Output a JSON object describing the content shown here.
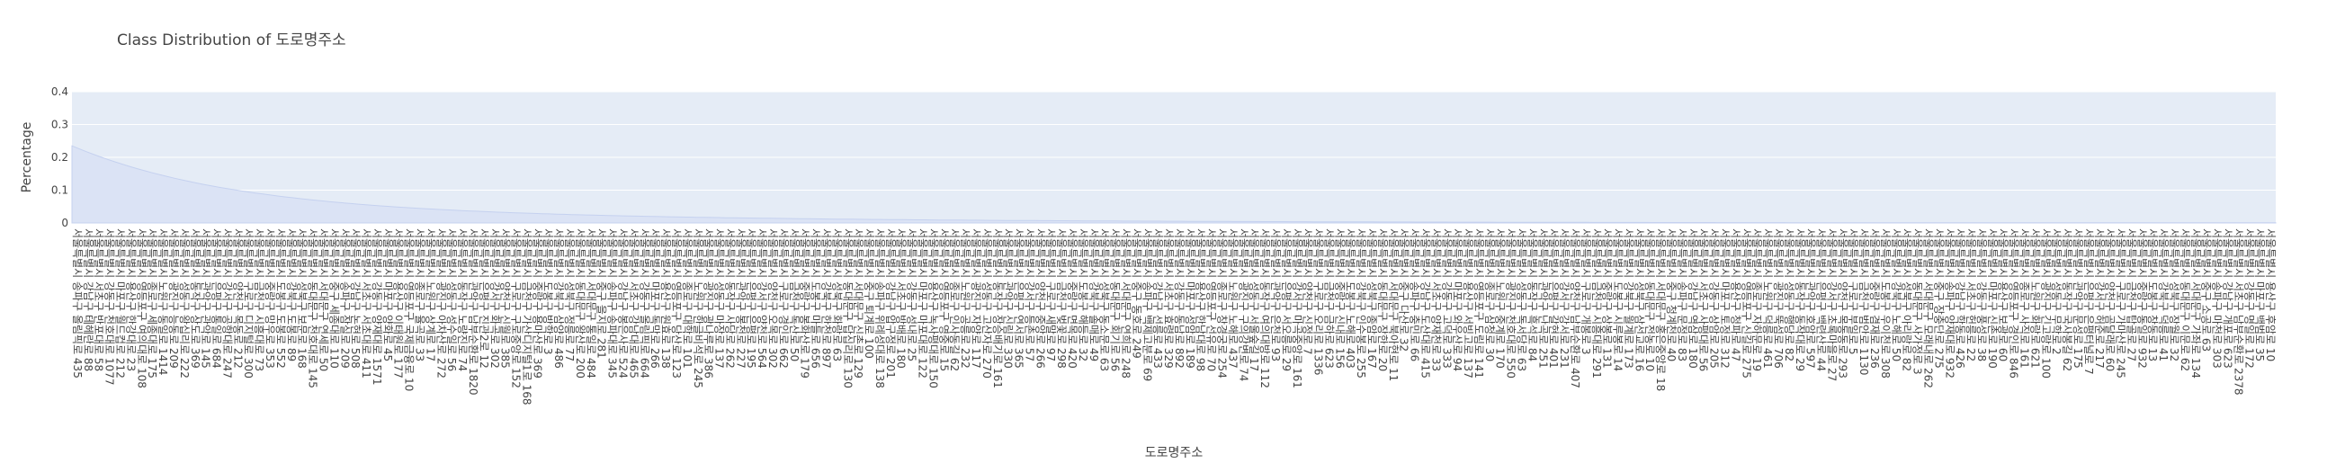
{
  "chart_data": {
    "type": "area",
    "title": "Class Distribution of 도로명주소",
    "xlabel": "도로명주소",
    "ylabel": "Percentage",
    "ylim": [
      0,
      0.4
    ],
    "y_ticks": [
      "0",
      "0.1",
      "0.2",
      "0.3",
      "0.4"
    ],
    "grid": true,
    "legend": "none",
    "colors": {
      "plot_bg": "#e5ecf6",
      "fill": "#dbe3f5",
      "line": "#c5d1ef",
      "grid": "#ffffff"
    },
    "categories": [
      "서울특별시 송파구 올림픽로 435",
      "서울특별시 강남구 테헤란로 88",
      "서울특별시 서초구 반포대로 58",
      "서울특별시 강동구 천호대로 1077",
      "서울특별시 마포구 월드컵로 212",
      "서울특별시 용산구 한강대로 23",
      "서울특별시 영등포구 여의대로 108",
      "서울특별시 종로구 세종대로 175",
      "서울특별시 노원구 동일로 1414",
      "서울특별시 광진구 능동로 209",
      "서울특별시 성동구 왕십리로 222",
      "서울특별시 동작구 상도로 369",
      "서울특별시 관악구 관악로 145",
      "서울특별시 은평구 통일로 684",
      "서울특별시 강서구 공항대로 247",
      "서울특별시 양천구 목동로 212",
      "서울특별시 구로구 디지털로 300",
      "서울특별시 금천구 시흥대로 73",
      "서울특별시 중랑구 망우로 353",
      "서울특별시 도봉구 도봉로 552",
      "서울특별시 강북구 도봉로 89",
      "서울특별시 성북구 보문로 168",
      "서울특별시 동대문구 천호대로 145",
      "서울특별시 서대문구 연세로 50",
      "서울특별시 중구 세종대로 110",
      "서울특별시 송파구 잠실로 209",
      "서울특별시 강남구 논현로 508",
      "서울특별시 서초구 서초대로 411",
      "서울특별시 강동구 양재대로 1571",
      "서울특별시 마포구 양화로 45",
      "서울특별시 용산구 이태원로 177",
      "서울특별시 영등포구 국제금융로 10",
      "서울특별시 종로구 율곡로 33",
      "서울특별시 노원구 상계로 17",
      "서울특별시 광진구 아차산로 272",
      "서울특별시 성동구 성수일로 56",
      "서울특별시 동작구 노량진로 74",
      "서울특별시 관악구 남부순환로 1820",
      "서울특별시 은평구 진관2로 12",
      "서울특별시 강서구 화곡로 302",
      "서울특별시 양천구 신월로 385",
      "서울특별시 구로구 구로중앙로 152",
      "서울특별시 금천구 가산디지털1로 168",
      "서울특별시 중랑구 용마산로 369",
      "서울특별시 도봉구 방학로 3",
      "서울특별시 강북구 삼양로 486",
      "서울특별시 성북구 정릉로 77",
      "서울특별시 동대문구 왕산로 200",
      "서울특별시 서대문구 통일로 484",
      "서울특별시 중구 을지로 281",
      "서울특별시 송파구 송파대로 345",
      "서울특별시 강남구 봉은사로 524",
      "서울특별시 서초구 강남대로 465",
      "서울특별시 강동구 올림픽로 664",
      "서울특별시 마포구 독막로 266",
      "서울특별시 용산구 원효로 138",
      "서울특별시 영등포구 당산로 123",
      "서울특별시 종로구 대학로 101",
      "서울특별시 노원구 한글비석로 245",
      "서울특별시 광진구 광나루로 386",
      "서울특별시 성동구 마장로 137",
      "서울특별시 동작구 사당로 262",
      "서울특별시 관악구 봉천로 227",
      "서울특별시 은평구 은평로 195",
      "서울특별시 강서구 양천로 564",
      "서울특별시 양천구 오목로 302",
      "서울특별시 구로구 경인로 662",
      "서울특별시 금천구 독산로 50",
      "서울특별시 중랑구 봉화산로 179",
      "서울특별시 도봉구 마들로 656",
      "서울특별시 강북구 한천로 897",
      "서울특별시 성북구 화랑로 63",
      "서울특별시 동대문구 답십리로 130",
      "서울특별시 서대문구 신촌로 129",
      "서울특별시 중구 퇴계로 100",
      "서울특별시 송파구 위례성대로 138",
      "서울특별시 강남구 압구정로 201",
      "서울특별시 서초구 방배로 180",
      "서울특별시 강동구 성내로 25",
      "서울특별시 마포구 마포대로 122",
      "서울특별시 용산구 녹사평대로 150",
      "서울특별시 영등포구 영중로 15",
      "서울특별시 종로구 인사동길 62",
      "서울특별시 노원구 공릉로 232",
      "서울특별시 광진구 자양로 117",
      "서울특별시 성동구 고산자로 270",
      "서울특별시 동작구 장승배기로 161",
      "서울특별시 관악구 신림로 330",
      "서울특별시 은평구 연서로 365",
      "서울특별시 강서구 등촌로 57",
      "서울특별시 양천구 중앙로 266",
      "서울특별시 구로구 새말로 97",
      "서울특별시 금천구 벚꽃로 298",
      "서울특별시 중랑구 면목로 420",
      "서울특별시 도봉구 해등로 32",
      "서울특별시 강북구 솔매로 49",
      "서울특별시 성북구 동소문로 63",
      "서울특별시 동대문구 회기로 56",
      "서울특별시 서대문구 연희로 248",
      "서울특별시 중구 동호로 249",
      "서울특별시 송파구 백제고분로 69",
      "서울특별시 강남구 선릉로 433",
      "서울특별시 서초구 효령로 329",
      "서울특별시 강동구 동남로 892",
      "서울특별시 마포구 성암로 189",
      "서울특별시 용산구 한남대로 98",
      "서울특별시 영등포구 선유로 70",
      "서울특별시 종로구 창경궁로 254",
      "서울특별시 노원구 노해로 437",
      "서울특별시 광진구 구의강변로 74",
      "서울특별시 성동구 서울숲길 17",
      "서울특별시 동작구 여의대방로 112",
      "서울특별시 관악구 은천로 93",
      "서울특별시 은평구 서오릉로 29",
      "서울특별시 강서구 마곡중앙로 161",
      "서울특별시 양천구 신정로 7",
      "서울특별시 구로구 오리로 1336",
      "서울특별시 금천구 금하로 623",
      "서울특별시 중랑구 신내로 156",
      "서울특별시 도봉구 노해로 403",
      "서울특별시 강북구 인수봉로 255",
      "서울특별시 성북구 종암로 167",
      "서울특별시 동대문구 장한로 20",
      "서울특별시 서대문구 북아현로 11",
      "서울특별시 중구 다산로 32",
      "서울특별시 송파구 충민로 66",
      "서울특별시 강남구 도산대로 415",
      "서울특별시 서초구 양재천로 33",
      "서울특별시 강동구 고덕로 333",
      "서울특별시 마포구 와우산로 94",
      "서울특별시 용산구 서빙고로 137",
      "서울특별시 영등포구 도림로 141",
      "서울특별시 종로구 삼청로 30",
      "서울특별시 노원구 중계로 170",
      "서울특별시 광진구 천호대로 550",
      "서울특별시 성동구 독서당로 63",
      "서울특별시 동작구 흑석로 84",
      "서울특별시 관악구 난곡로 251",
      "서울특별시 은평구 갈현로 401",
      "서울특별시 강서구 강서로 231",
      "서울특별시 양천구 남부순환로 407",
      "서울특별시 구로구 개봉로 3",
      "서울특별시 금천구 시흥대로 291",
      "서울특별시 중랑구 상봉로 131",
      "서울특별시 도봉구 시루봉로 14",
      "서울특별시 강북구 월계로 173",
      "서울특별시 성북구 삼선교로 16",
      "서울특별시 동대문구 전농로 10",
      "서울특별시 서대문구 홍은중앙로 18",
      "서울특별시 중구 청계천로 40",
      "서울특별시 송파구 문정로 83",
      "서울특별시 강남구 역삼로 180",
      "서울특별시 서초구 사평대로 56",
      "서울특별시 강동구 상암로 205",
      "서울특별시 마포구 토정로 312",
      "서울특별시 용산구 청파로 47",
      "서울특별시 영등포구 신길로 275",
      "서울특별시 종로구 자하문로 19",
      "서울특별시 노원구 덕릉로 461",
      "서울특별시 광진구 뚝섬로 706",
      "서울특별시 성동구 행당로 82",
      "서울특별시 동작구 동작대로 29",
      "서울특별시 관악구 호암로 597",
      "서울특별시 은평구 백련산로 44",
      "서울특별시 강서구 초록마을로 27",
      "서울특별시 양천구 목동동로 293",
      "서울특별시 구로구 부일로 5",
      "서울특별시 금천구 범안로 1130",
      "서울특별시 중랑구 겸재로 236",
      "서울특별시 도봉구 우이천로 308",
      "서울특별시 강북구 노해로 50",
      "서울특별시 성북구 아리랑로 82",
      "서울특별시 동대문구 사가정로 3",
      "서울특별시 서대문구 모래내로 262",
      "서울특별시 중구 장충단로 275",
      "서울특별시 송파구 양재대로 932",
      "서울특별시 강남구 학동로 426",
      "서울특별시 서초구 헌릉로 22",
      "서울특별시 강동구 풍성로 38",
      "서울특별시 마포구 신촌로 190",
      "서울특별시 용산구 보광로 60",
      "서울특별시 영등포구 경인로 846",
      "서울특별시 종로구 사직로 161",
      "서울특별시 노원구 화랑로 621",
      "서울특별시 광진구 긴고랑로 100",
      "서울특별시 성동구 무학로 2",
      "서울특별시 동작구 국사봉길 62",
      "서울특별시 관악구 문성로 175",
      "서울특별시 은평구 은평터널로 7",
      "서울특별시 강서구 허준로 217",
      "서울특별시 양천구 곰달래로 60",
      "서울특별시 구로구 가마산로 245",
      "서울특별시 금천구 탑골로 27",
      "서울특별시 중랑구 동일로 932",
      "서울특별시 도봉구 창동로 13",
      "서울특별시 강북구 덕릉로 41",
      "서울특별시 성북구 장월로 32",
      "서울특별시 동대문구 이문로 62",
      "서울특별시 서대문구 가좌로 134",
      "서울특별시 중구 소공로 63",
      "서울특별시 송파구 마천로 303",
      "서울특별시 강남구 개포로 623",
      "서울특별시 서초구 남부순환로 2378",
      "서울특별시 강동구 명일로 172",
      "서울특별시 마포구 백범로 35",
      "서울특별시 용산구 후암로 10"
    ]
  }
}
